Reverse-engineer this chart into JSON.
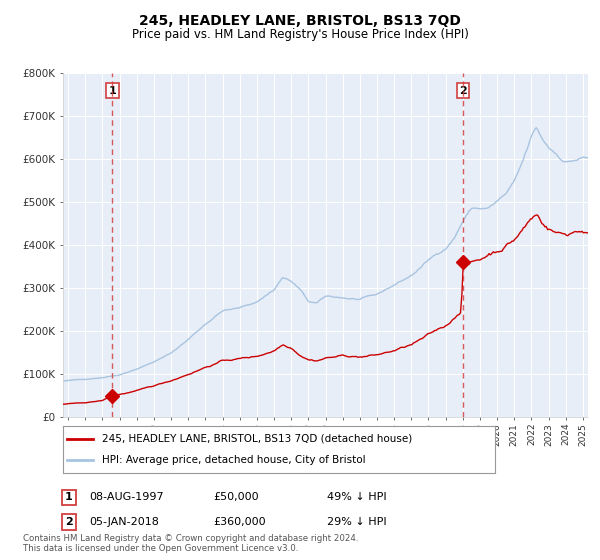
{
  "title": "245, HEADLEY LANE, BRISTOL, BS13 7QD",
  "subtitle": "Price paid vs. HM Land Registry's House Price Index (HPI)",
  "legend_line1": "245, HEADLEY LANE, BRISTOL, BS13 7QD (detached house)",
  "legend_line2": "HPI: Average price, detached house, City of Bristol",
  "annotation1_label": "1",
  "annotation1_date": "08-AUG-1997",
  "annotation1_price": "£50,000",
  "annotation1_hpi": "49% ↓ HPI",
  "annotation1_year": 1997.58,
  "annotation1_value": 50000,
  "annotation2_label": "2",
  "annotation2_date": "05-JAN-2018",
  "annotation2_price": "£360,000",
  "annotation2_hpi": "29% ↓ HPI",
  "annotation2_year": 2018.02,
  "annotation2_value": 360000,
  "footer": "Contains HM Land Registry data © Crown copyright and database right 2024.\nThis data is licensed under the Open Government Licence v3.0.",
  "hpi_color": "#a8c4e0",
  "price_color": "#cc0000",
  "vline_color": "#d04040",
  "plot_bg": "#e8eef8",
  "ylim": [
    0,
    800000
  ],
  "xlim_start": 1994.7,
  "xlim_end": 2025.3,
  "title_fontsize": 10.5,
  "subtitle_fontsize": 9
}
